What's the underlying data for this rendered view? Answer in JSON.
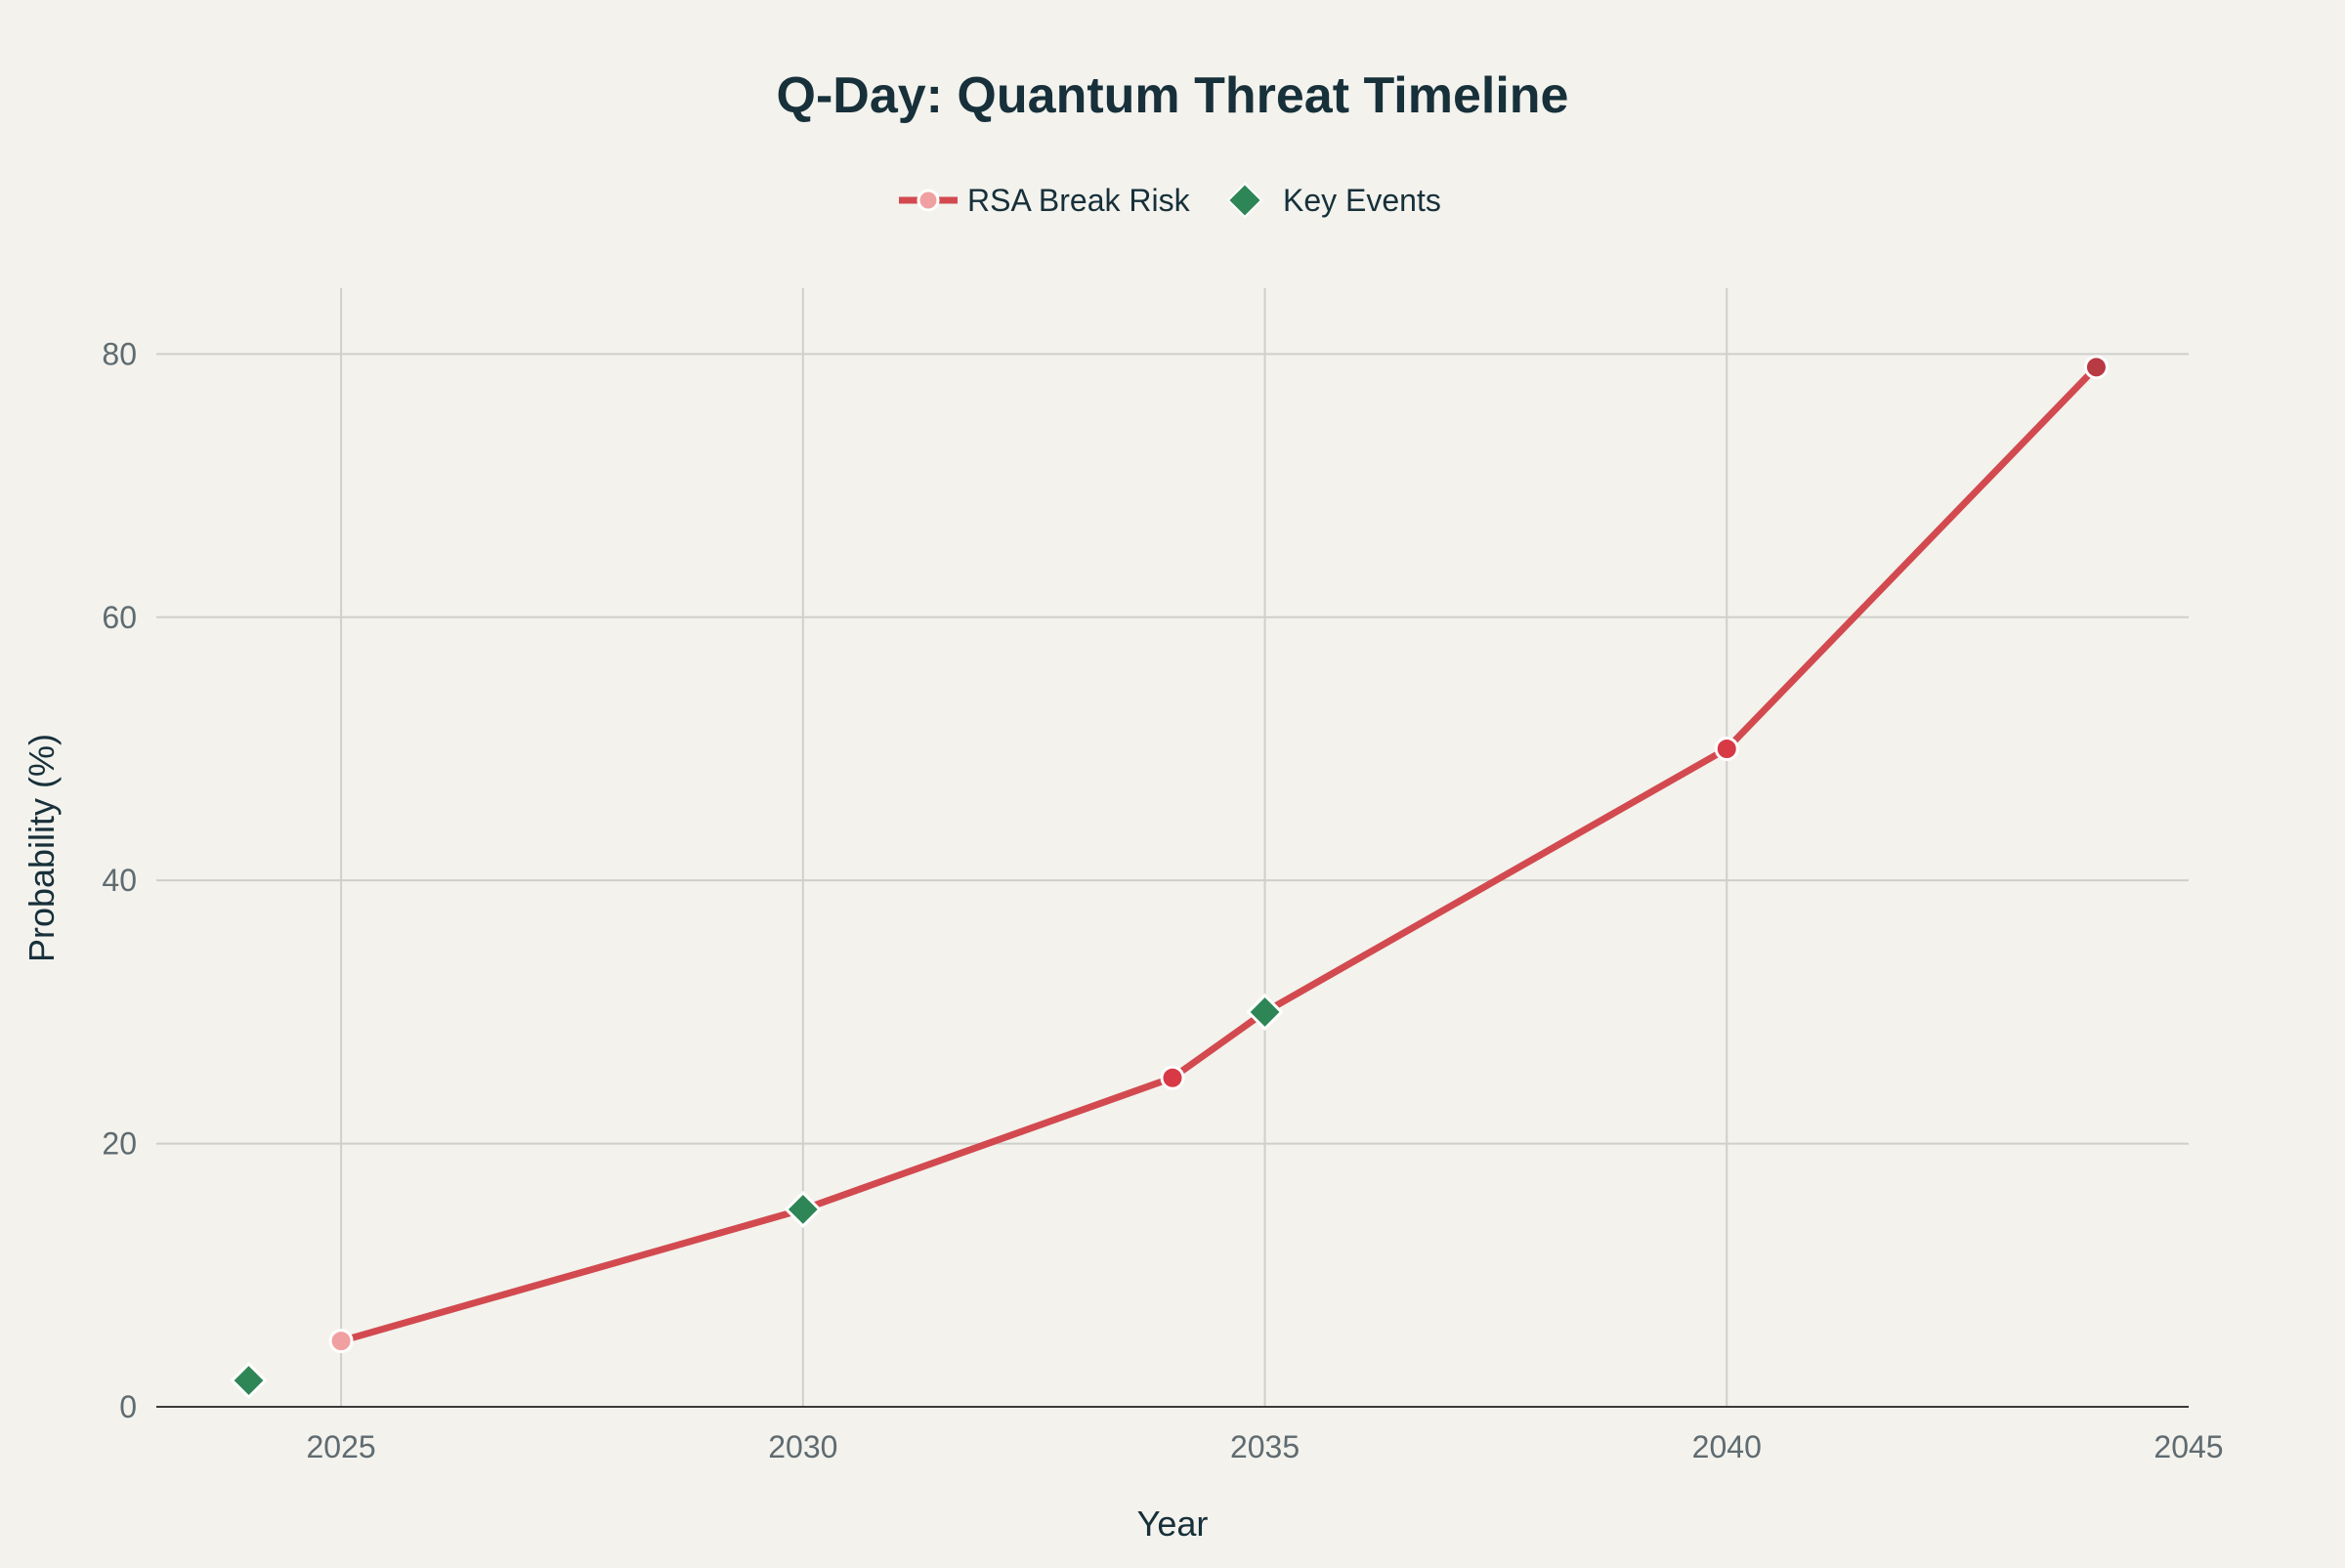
{
  "chart_data": {
    "type": "line",
    "title": "Q-Day: Quantum Threat Timeline",
    "xlabel": "Year",
    "ylabel": "Probability (%)",
    "xlim": [
      2023,
      2045
    ],
    "ylim": [
      0,
      85
    ],
    "xticks": [
      2025,
      2030,
      2035,
      2040,
      2045
    ],
    "yticks": [
      0,
      20,
      40,
      60,
      80
    ],
    "grid": true,
    "legend_position": "top-center",
    "series": [
      {
        "name": "RSA Break Risk",
        "kind": "line+markers",
        "color": "#d24a4f",
        "marker_colors": [
          "#f0a0a0",
          "#d73a45",
          "#d73a45",
          "#b83a43"
        ],
        "points": [
          {
            "x": 2025,
            "y": 5
          },
          {
            "x": 2030,
            "y": 15
          },
          {
            "x": 2034,
            "y": 25
          },
          {
            "x": 2035,
            "y": 30
          },
          {
            "x": 2040,
            "y": 50
          },
          {
            "x": 2044,
            "y": 79
          }
        ]
      },
      {
        "name": "Key Events",
        "kind": "markers",
        "marker": "diamond",
        "color": "#2e8555",
        "points": [
          {
            "x": 2024,
            "y": 2
          },
          {
            "x": 2030,
            "y": 15
          },
          {
            "x": 2035,
            "y": 30
          }
        ]
      }
    ]
  }
}
